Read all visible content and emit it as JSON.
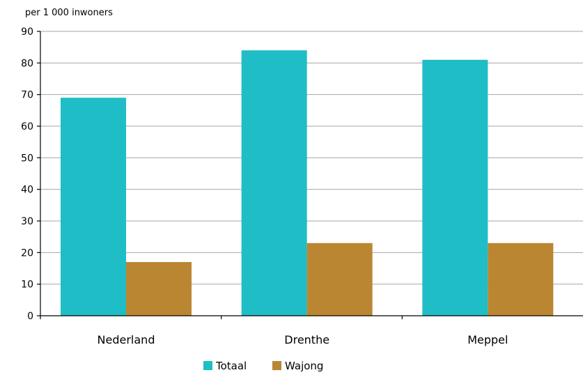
{
  "chart_data": {
    "type": "bar",
    "ylabel": "per 1 000 inwoners",
    "categories": [
      "Nederland",
      "Drenthe",
      "Meppel"
    ],
    "series": [
      {
        "name": "Totaal",
        "values": [
          69,
          84,
          81
        ],
        "color": "#1fbdc6"
      },
      {
        "name": "Wajong",
        "values": [
          17,
          23,
          23
        ],
        "color": "#bb8632"
      }
    ],
    "ylim": [
      0,
      90
    ],
    "yticks": [
      0,
      10,
      20,
      30,
      40,
      50,
      60,
      70,
      80,
      90
    ],
    "grid": true,
    "legend": "bottom-center"
  }
}
